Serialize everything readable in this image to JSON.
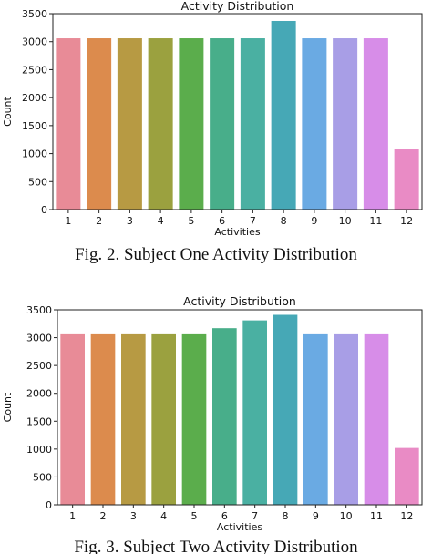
{
  "chart_data": [
    {
      "type": "bar",
      "title": "Activity Distribution",
      "xlabel": "Activities",
      "ylabel": "Count",
      "categories": [
        "1",
        "2",
        "3",
        "4",
        "5",
        "6",
        "7",
        "8",
        "9",
        "10",
        "11",
        "12"
      ],
      "values": [
        3060,
        3060,
        3060,
        3060,
        3060,
        3060,
        3060,
        3370,
        3060,
        3060,
        3060,
        1080
      ],
      "ylim": [
        0,
        3500
      ],
      "yticks": [
        0,
        500,
        1000,
        1500,
        2000,
        2500,
        3000,
        3500
      ],
      "colors": [
        "#e88b97",
        "#dc8b4d",
        "#b79a43",
        "#9ba13f",
        "#5bad4c",
        "#48ae8a",
        "#4ab0a2",
        "#46a8b6",
        "#6aaae3",
        "#a89ee6",
        "#d78de8",
        "#e98bc5"
      ],
      "caption": "Fig. 2.  Subject One Activity Distribution"
    },
    {
      "type": "bar",
      "title": "Activity Distribution",
      "xlabel": "Activities",
      "ylabel": "Count",
      "categories": [
        "1",
        "2",
        "3",
        "4",
        "5",
        "6",
        "7",
        "8",
        "9",
        "10",
        "11",
        "12"
      ],
      "values": [
        3060,
        3060,
        3060,
        3060,
        3060,
        3170,
        3310,
        3410,
        3060,
        3060,
        3060,
        1020
      ],
      "ylim": [
        0,
        3500
      ],
      "yticks": [
        0,
        500,
        1000,
        1500,
        2000,
        2500,
        3000,
        3500
      ],
      "colors": [
        "#e88b97",
        "#dc8b4d",
        "#b79a43",
        "#9ba13f",
        "#5bad4c",
        "#48ae8a",
        "#4ab0a2",
        "#46a8b6",
        "#6aaae3",
        "#a89ee6",
        "#d78de8",
        "#e98bc5"
      ],
      "caption": "Fig. 3.  Subject Two Activity Distribution"
    }
  ]
}
